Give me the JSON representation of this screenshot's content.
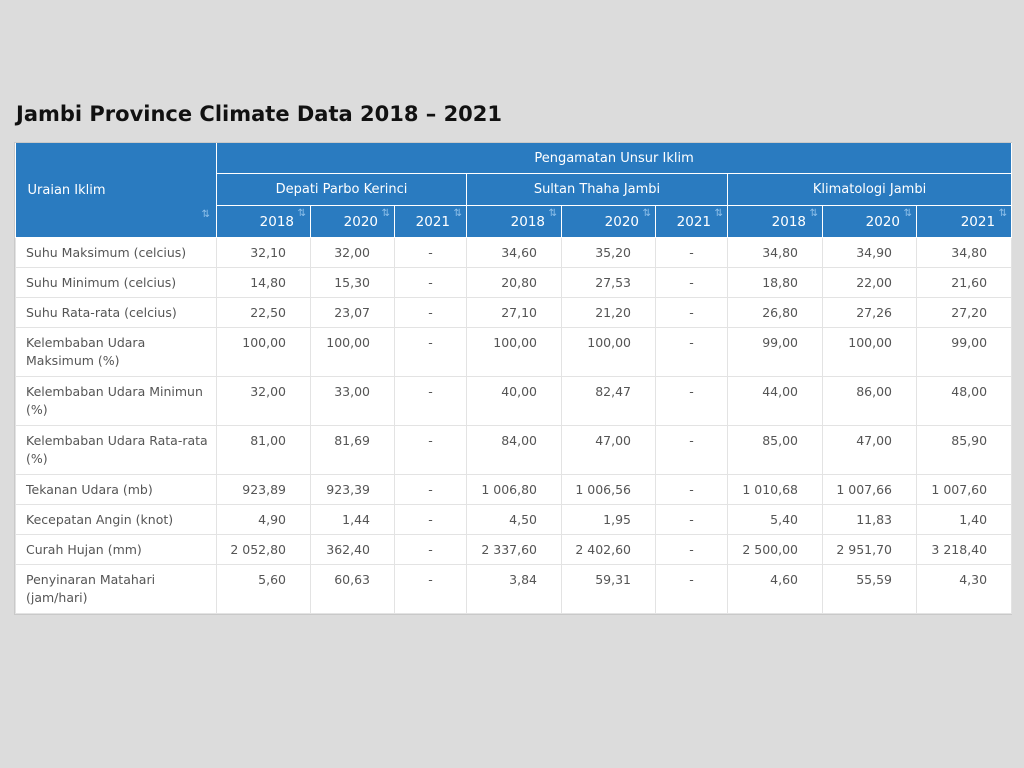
{
  "title": "Jambi Province Climate Data 2018 – 2021",
  "header": {
    "row_label": "Uraian Iklim",
    "group_label": "Pengamatan Unsur Iklim",
    "stations": [
      "Depati Parbo Kerinci",
      "Sultan Thaha Jambi",
      "Klimatologi Jambi"
    ],
    "years": [
      "2018",
      "2020",
      "2021",
      "2018",
      "2020",
      "2021",
      "2018",
      "2020",
      "2021"
    ],
    "sort_glyph": "⇅"
  },
  "rows": [
    {
      "label": "Suhu Maksimum (celcius)",
      "values": [
        "32,10",
        "32,00",
        "-",
        "34,60",
        "35,20",
        "-",
        "34,80",
        "34,90",
        "34,80"
      ]
    },
    {
      "label": "Suhu Minimum (celcius)",
      "values": [
        "14,80",
        "15,30",
        "-",
        "20,80",
        "27,53",
        "-",
        "18,80",
        "22,00",
        "21,60"
      ]
    },
    {
      "label": "Suhu Rata-rata (celcius)",
      "values": [
        "22,50",
        "23,07",
        "-",
        "27,10",
        "21,20",
        "-",
        "26,80",
        "27,26",
        "27,20"
      ]
    },
    {
      "label": "Kelembaban Udara Maksimum (%)",
      "values": [
        "100,00",
        "100,00",
        "-",
        "100,00",
        "100,00",
        "-",
        "99,00",
        "100,00",
        "99,00"
      ]
    },
    {
      "label": "Kelembaban Udara Minimun (%)",
      "values": [
        "32,00",
        "33,00",
        "-",
        "40,00",
        "82,47",
        "-",
        "44,00",
        "86,00",
        "48,00"
      ]
    },
    {
      "label": "Kelembaban Udara Rata-rata (%)",
      "values": [
        "81,00",
        "81,69",
        "-",
        "84,00",
        "47,00",
        "-",
        "85,00",
        "47,00",
        "85,90"
      ]
    },
    {
      "label": "Tekanan Udara (mb)",
      "values": [
        "923,89",
        "923,39",
        "-",
        "1 006,80",
        "1 006,56",
        "-",
        "1 010,68",
        "1 007,66",
        "1 007,60"
      ]
    },
    {
      "label": "Kecepatan Angin (knot)",
      "values": [
        "4,90",
        "1,44",
        "-",
        "4,50",
        "1,95",
        "-",
        "5,40",
        "11,83",
        "1,40"
      ]
    },
    {
      "label": "Curah Hujan (mm)",
      "values": [
        "2 052,80",
        "362,40",
        "-",
        "2 337,60",
        "2 402,60",
        "-",
        "2 500,00",
        "2 951,70",
        "3 218,40"
      ]
    },
    {
      "label": "Penyinaran Matahari (jam/hari)",
      "values": [
        "5,60",
        "60,63",
        "-",
        "3,84",
        "59,31",
        "-",
        "4,60",
        "55,59",
        "4,30"
      ]
    }
  ]
}
